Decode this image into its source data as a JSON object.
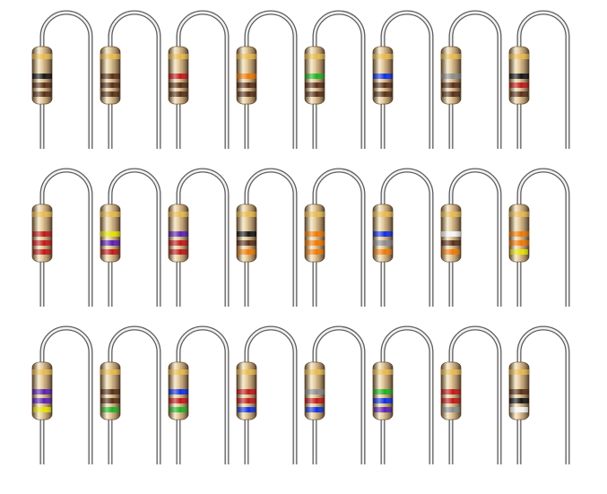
{
  "band_colors": {
    "gold": "#e8b84a",
    "black": "#151515",
    "brown": "#5a3018",
    "red": "#c01818",
    "orange": "#f07800",
    "yellow": "#e6e000",
    "green": "#20b020",
    "blue": "#1030e0",
    "violet": "#5a20b0",
    "gray": "#8a8a8a",
    "white": "#f4f4f4"
  },
  "colors": {
    "body": "#c8a878",
    "body_light": "#efdcaa",
    "body_dark": "#8a6a45",
    "lead": "#c8c8c8",
    "lead_dark": "#6a6a6a",
    "background": "#ffffff"
  },
  "resistors": [
    {
      "bands": [
        "gold",
        "black",
        "brown",
        "brown"
      ]
    },
    {
      "bands": [
        "gold",
        "brown",
        "brown",
        "brown"
      ]
    },
    {
      "bands": [
        "gold",
        "red",
        "brown",
        "brown"
      ]
    },
    {
      "bands": [
        "gold",
        "orange",
        "brown",
        "brown"
      ]
    },
    {
      "bands": [
        "gold",
        "green",
        "brown",
        "brown"
      ]
    },
    {
      "bands": [
        "gold",
        "blue",
        "brown",
        "brown"
      ]
    },
    {
      "bands": [
        "gold",
        "gray",
        "brown",
        "brown"
      ]
    },
    {
      "bands": [
        "gold",
        "black",
        "red",
        "brown"
      ]
    },
    {
      "bands": [
        "gold",
        "red",
        "red",
        "red"
      ]
    },
    {
      "bands": [
        "gold",
        "yellow",
        "violet",
        "red"
      ]
    },
    {
      "bands": [
        "gold",
        "violet",
        "red",
        "red"
      ]
    },
    {
      "bands": [
        "gold",
        "black",
        "brown",
        "orange"
      ]
    },
    {
      "bands": [
        "gold",
        "orange",
        "orange",
        "orange"
      ]
    },
    {
      "bands": [
        "gold",
        "blue",
        "gray",
        "orange"
      ]
    },
    {
      "bands": [
        "gold",
        "white",
        "brown",
        "orange"
      ]
    },
    {
      "bands": [
        "gold",
        "orange",
        "orange",
        "yellow"
      ]
    },
    {
      "bands": [
        "gold",
        "violet",
        "violet",
        "yellow"
      ]
    },
    {
      "bands": [
        "gold",
        "brown",
        "brown",
        "green"
      ]
    },
    {
      "bands": [
        "gold",
        "blue",
        "red",
        "green"
      ]
    },
    {
      "bands": [
        "gold",
        "red",
        "red",
        "blue"
      ]
    },
    {
      "bands": [
        "gold",
        "gray",
        "red",
        "blue"
      ]
    },
    {
      "bands": [
        "gold",
        "green",
        "blue",
        "violet"
      ]
    },
    {
      "bands": [
        "gold",
        "red",
        "red",
        "gray"
      ]
    },
    {
      "bands": [
        "gold",
        "brown",
        "black",
        "white"
      ]
    }
  ]
}
